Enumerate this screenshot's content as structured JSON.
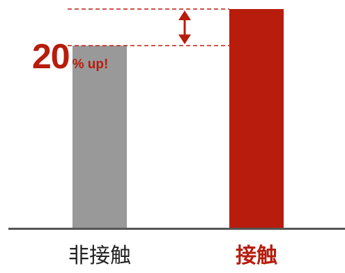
{
  "chart_data": {
    "type": "bar",
    "categories": [
      "非接触",
      "接触"
    ],
    "values": [
      100,
      120
    ],
    "ylim": [
      0,
      125
    ],
    "grid": false,
    "annotation": {
      "big": "20",
      "small": "% up!"
    },
    "colors": {
      "bar_0": "#999999",
      "bar_1": "#b71c0c",
      "accent": "#b71c0c",
      "baseline": "#555555",
      "label_normal": "#222222"
    }
  }
}
